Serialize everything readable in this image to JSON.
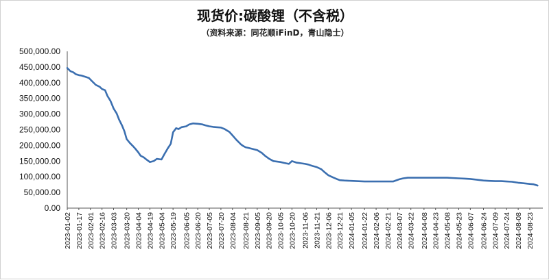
{
  "chart_data": {
    "type": "line",
    "title": "现货价:碳酸锂（不含税）",
    "subtitle": "（资料来源：同花顺iFinD，青山隐士）",
    "xlabel": "",
    "ylabel": "",
    "ylim": [
      0,
      500000
    ],
    "y_ticks": [
      "500,000.00",
      "450,000.00",
      "400,000.00",
      "350,000.00",
      "300,000.00",
      "250,000.00",
      "200,000.00",
      "150,000.00",
      "100,000.00",
      "50,000.00",
      "0.00"
    ],
    "x_ticks": [
      "2023-01-02",
      "2023-01-17",
      "2023-02-01",
      "2023-02-16",
      "2023-03-03",
      "2023-03-20",
      "2023-04-04",
      "2023-04-19",
      "2023-05-04",
      "2023-05-19",
      "2023-06-05",
      "2023-06-20",
      "2023-07-05",
      "2023-07-20",
      "2023-08-04",
      "2023-08-21",
      "2023-09-05",
      "2023-09-20",
      "2023-10-05",
      "2023-10-20",
      "2023-11-06",
      "2023-11-21",
      "2023-12-06",
      "2023-12-21",
      "2024-01-05",
      "2024-01-22",
      "2024-02-06",
      "2024-02-21",
      "2024-03-07",
      "2024-03-22",
      "2024-04-08",
      "2024-04-23",
      "2024-05-08",
      "2024-05-23",
      "2024-06-07",
      "2024-06-24",
      "2024-07-09",
      "2024-07-24",
      "2024-08-08",
      "2024-08-23"
    ],
    "series": [
      {
        "color": "#3b6fb0",
        "x": [
          "2023-01-02",
          "2023-01-06",
          "2023-01-10",
          "2023-01-13",
          "2023-01-17",
          "2023-01-20",
          "2023-01-30",
          "2023-02-03",
          "2023-02-08",
          "2023-02-13",
          "2023-02-16",
          "2023-02-20",
          "2023-02-23",
          "2023-02-27",
          "2023-03-03",
          "2023-03-07",
          "2023-03-10",
          "2023-03-14",
          "2023-03-17",
          "2023-03-20",
          "2023-03-24",
          "2023-03-28",
          "2023-03-31",
          "2023-04-04",
          "2023-04-07",
          "2023-04-11",
          "2023-04-14",
          "2023-04-19",
          "2023-04-24",
          "2023-04-28",
          "2023-05-04",
          "2023-05-08",
          "2023-05-12",
          "2023-05-16",
          "2023-05-19",
          "2023-05-23",
          "2023-05-26",
          "2023-05-30",
          "2023-06-05",
          "2023-06-09",
          "2023-06-14",
          "2023-06-20",
          "2023-06-26",
          "2023-06-30",
          "2023-07-05",
          "2023-07-10",
          "2023-07-14",
          "2023-07-20",
          "2023-07-25",
          "2023-07-31",
          "2023-08-04",
          "2023-08-09",
          "2023-08-15",
          "2023-08-18",
          "2023-08-21",
          "2023-08-25",
          "2023-08-31",
          "2023-09-05",
          "2023-09-11",
          "2023-09-15",
          "2023-09-20",
          "2023-09-26",
          "2023-10-05",
          "2023-10-10",
          "2023-10-16",
          "2023-10-20",
          "2023-10-26",
          "2023-11-01",
          "2023-11-06",
          "2023-11-10",
          "2023-11-15",
          "2023-11-21",
          "2023-11-27",
          "2023-12-01",
          "2023-12-06",
          "2023-12-12",
          "2023-12-18",
          "2023-12-21",
          "2023-12-27",
          "2024-01-05",
          "2024-01-12",
          "2024-01-22",
          "2024-02-01",
          "2024-02-06",
          "2024-02-21",
          "2024-02-28",
          "2024-03-07",
          "2024-03-12",
          "2024-03-18",
          "2024-03-22",
          "2024-03-29",
          "2024-04-08",
          "2024-04-16",
          "2024-04-23",
          "2024-05-08",
          "2024-05-15",
          "2024-05-23",
          "2024-05-31",
          "2024-06-07",
          "2024-06-14",
          "2024-06-24",
          "2024-07-01",
          "2024-07-09",
          "2024-07-17",
          "2024-07-24",
          "2024-07-31",
          "2024-08-08",
          "2024-08-16",
          "2024-08-23",
          "2024-08-28",
          "2024-09-02"
        ],
        "values": [
          447000,
          437000,
          433000,
          427000,
          424000,
          423000,
          415000,
          405000,
          393000,
          387000,
          380000,
          376000,
          358000,
          342000,
          318000,
          302000,
          283000,
          263000,
          245000,
          220000,
          208000,
          198000,
          190000,
          178000,
          167000,
          162000,
          156000,
          147000,
          150000,
          157000,
          155000,
          173000,
          190000,
          205000,
          242000,
          255000,
          252000,
          258000,
          261000,
          267000,
          270000,
          269000,
          267000,
          264000,
          261000,
          259000,
          258000,
          257000,
          252000,
          243000,
          232000,
          218000,
          203000,
          198000,
          194000,
          192000,
          188000,
          185000,
          176000,
          167000,
          158000,
          150000,
          147000,
          144000,
          141000,
          150000,
          145000,
          143000,
          141000,
          139000,
          135000,
          131000,
          124000,
          115000,
          105000,
          98000,
          92000,
          89000,
          88000,
          87000,
          86000,
          85000,
          85000,
          85000,
          85000,
          85000,
          92000,
          95000,
          97000,
          97000,
          97000,
          97000,
          97000,
          97000,
          97000,
          96000,
          95000,
          94000,
          93000,
          91000,
          88000,
          87000,
          86000,
          86000,
          85000,
          84000,
          81000,
          79000,
          77000,
          76000,
          72000
        ]
      }
    ]
  }
}
